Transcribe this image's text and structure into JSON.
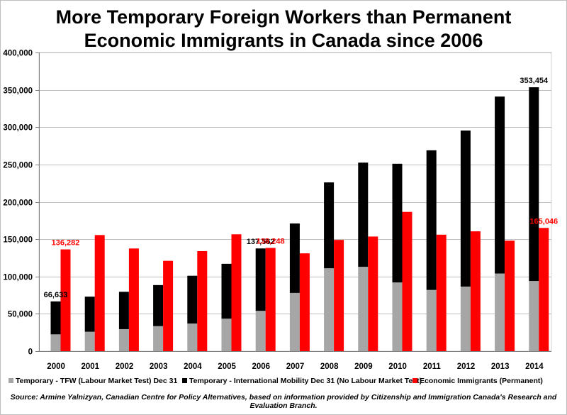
{
  "chart_data": {
    "type": "bar",
    "title_lines": [
      "More Temporary Foreign Workers than Permanent",
      "Economic Immigrants in Canada since 2006"
    ],
    "categories": [
      "2000",
      "2001",
      "2002",
      "2003",
      "2004",
      "2005",
      "2006",
      "2007",
      "2008",
      "2009",
      "2010",
      "2011",
      "2012",
      "2013",
      "2014"
    ],
    "ylim": [
      0,
      400000
    ],
    "yticks": [
      0,
      50000,
      100000,
      150000,
      200000,
      250000,
      300000,
      350000,
      400000
    ],
    "ytick_labels": [
      "0",
      "50,000",
      "100,000",
      "150,000",
      "200,000",
      "250,000",
      "300,000",
      "350,000",
      "400,000"
    ],
    "grid": true,
    "legend_position": "bottom",
    "series": [
      {
        "name": "Temporary - TFW (Labour Market Test)  Dec 31",
        "color": "#a6a6a6",
        "stack": "temporary",
        "values": [
          22500,
          26000,
          29500,
          33500,
          37000,
          43500,
          54000,
          78000,
          111000,
          113000,
          92000,
          82000,
          86500,
          104000,
          94000
        ]
      },
      {
        "name": "Temporary - International Mobility Dec 31 (No Labour Market Test)",
        "color": "#000000",
        "stack": "temporary",
        "values": [
          44133,
          47000,
          50000,
          55000,
          64000,
          73500,
          83562,
          93000,
          115000,
          139500,
          159000,
          187000,
          209000,
          237000,
          259454
        ]
      },
      {
        "name": "Economic Immigrants (Permanent)",
        "color": "#ff0000",
        "stack": "permanent",
        "values": [
          136282,
          155500,
          137500,
          121000,
          134000,
          156500,
          138248,
          131000,
          149000,
          153500,
          186500,
          156000,
          160500,
          148000,
          165046
        ]
      }
    ],
    "annotations": [
      {
        "text": "66,633",
        "category": "2000",
        "stack": "temporary",
        "color": "#000000"
      },
      {
        "text": "136,282",
        "category": "2000",
        "stack": "permanent",
        "color": "#ff0000"
      },
      {
        "text": "137,562",
        "category": "2006",
        "stack": "temporary",
        "color": "#000000"
      },
      {
        "text": "138,248",
        "category": "2006",
        "stack": "permanent",
        "color": "#ff0000"
      },
      {
        "text": "353,454",
        "category": "2014",
        "stack": "temporary",
        "color": "#000000"
      },
      {
        "text": "165,046",
        "category": "2014",
        "stack": "permanent",
        "color": "#ff0000"
      }
    ],
    "source": "Source: Armine Yalnizyan, Canadian Centre for Policy Alternatives, based on information provided by Citizenship and Immigration Canada's Research and Evaluation Branch."
  }
}
